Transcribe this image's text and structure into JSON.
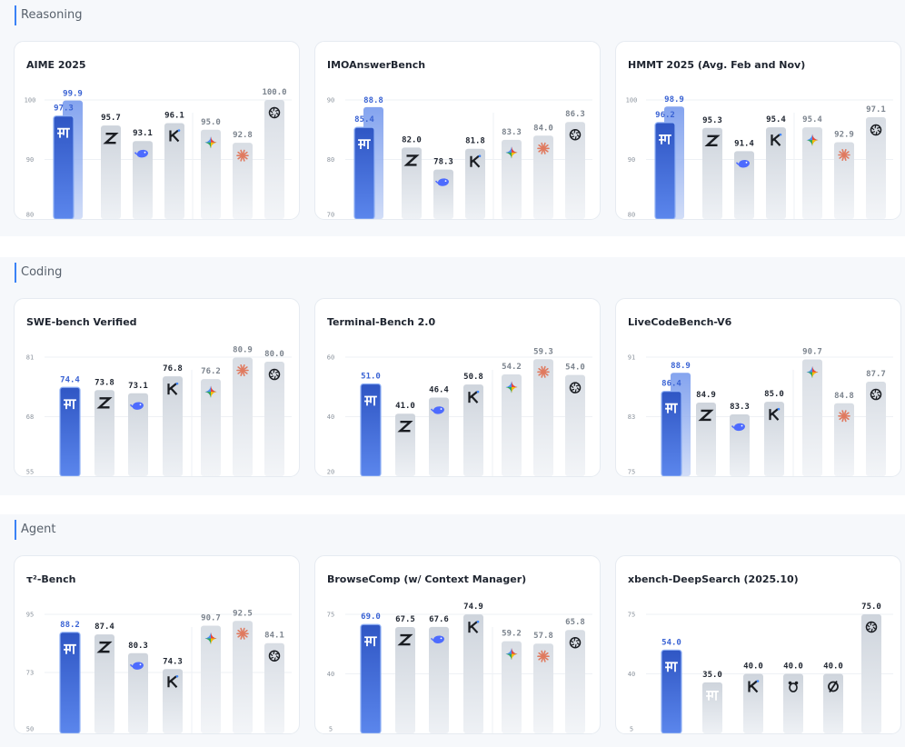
{
  "colors": {
    "primary_top": "#2f56c4",
    "primary_bottom": "#5b86ec",
    "primary_label": "#3a63d4",
    "gray_top": "#ced4dc",
    "gray_bottom": "#eef1f5",
    "gray_label": "#1f2530",
    "light_label": "#7c848e"
  },
  "sections": [
    {
      "title": "Reasoning",
      "charts": [
        {
          "title": "AIME 2025",
          "chart_data": {
            "type": "bar",
            "ylim": [
              80,
              100
            ],
            "ticks": [
              80,
              90,
              100
            ],
            "bars": [
              {
                "value": 97.3,
                "extra": 99.9,
                "icon": "m-icon",
                "style": "primary"
              },
              {
                "value": 95.7,
                "icon": "z-icon",
                "style": "gray"
              },
              {
                "value": 93.1,
                "icon": "whale-icon",
                "style": "gray"
              },
              {
                "value": 96.1,
                "icon": "k-icon",
                "style": "gray"
              },
              {
                "value": 95.0,
                "icon": "gemini-icon",
                "style": "light",
                "gap": true
              },
              {
                "value": 92.8,
                "icon": "claude-icon",
                "style": "light"
              },
              {
                "value": 100.0,
                "icon": "openai-icon",
                "style": "light"
              }
            ]
          }
        },
        {
          "title": "IMOAnswerBench",
          "chart_data": {
            "type": "bar",
            "ylim": [
              70,
              90
            ],
            "ticks": [
              70,
              80,
              90
            ],
            "bars": [
              {
                "value": 85.4,
                "extra": 88.8,
                "icon": "m-icon",
                "style": "primary"
              },
              {
                "value": 82.0,
                "icon": "z-icon",
                "style": "gray"
              },
              {
                "value": 78.3,
                "icon": "whale-icon",
                "style": "gray"
              },
              {
                "value": 81.8,
                "icon": "k-icon",
                "style": "gray"
              },
              {
                "value": 83.3,
                "icon": "gemini-icon",
                "style": "light",
                "gap": true
              },
              {
                "value": 84.0,
                "icon": "claude-icon",
                "style": "light"
              },
              {
                "value": 86.3,
                "icon": "openai-icon",
                "style": "light"
              }
            ]
          }
        },
        {
          "title": "HMMT 2025 (Avg. Feb and Nov)",
          "chart_data": {
            "type": "bar",
            "ylim": [
              80,
              100
            ],
            "ticks": [
              80,
              90,
              100
            ],
            "bars": [
              {
                "value": 96.2,
                "extra": 98.9,
                "icon": "m-icon",
                "style": "primary"
              },
              {
                "value": 95.3,
                "icon": "z-icon",
                "style": "gray"
              },
              {
                "value": 91.4,
                "icon": "whale-icon",
                "style": "gray"
              },
              {
                "value": 95.4,
                "icon": "k-icon",
                "style": "gray"
              },
              {
                "value": 95.4,
                "icon": "gemini-icon",
                "style": "light",
                "gap": true
              },
              {
                "value": 92.9,
                "icon": "claude-icon",
                "style": "light"
              },
              {
                "value": 97.1,
                "icon": "openai-icon",
                "style": "light"
              }
            ]
          }
        }
      ]
    },
    {
      "title": "Coding",
      "charts": [
        {
          "title": "SWE-bench Verified",
          "chart_data": {
            "type": "bar",
            "ylim": [
              55,
              81
            ],
            "ticks": [
              55,
              68,
              81
            ],
            "bars": [
              {
                "value": 74.4,
                "icon": "m-icon",
                "style": "primary"
              },
              {
                "value": 73.8,
                "icon": "z-icon",
                "style": "gray"
              },
              {
                "value": 73.1,
                "icon": "whale-icon",
                "style": "gray"
              },
              {
                "value": 76.8,
                "icon": "k-icon",
                "style": "gray"
              },
              {
                "value": 76.2,
                "icon": "gemini-icon",
                "style": "light",
                "gap": true
              },
              {
                "value": 80.9,
                "icon": "claude-icon",
                "style": "light"
              },
              {
                "value": 80.0,
                "icon": "openai-icon",
                "style": "light"
              }
            ]
          }
        },
        {
          "title": "Terminal-Bench 2.0",
          "chart_data": {
            "type": "bar",
            "ylim": [
              20,
              60
            ],
            "ticks": [
              20,
              40,
              60
            ],
            "bars": [
              {
                "value": 51.0,
                "icon": "m-icon",
                "style": "primary"
              },
              {
                "value": 41.0,
                "icon": "z-icon",
                "style": "gray"
              },
              {
                "value": 46.4,
                "icon": "whale-icon",
                "style": "gray"
              },
              {
                "value": 50.8,
                "icon": "k-icon",
                "style": "gray"
              },
              {
                "value": 54.2,
                "icon": "gemini-icon",
                "style": "light",
                "gap": true
              },
              {
                "value": 59.3,
                "icon": "claude-icon",
                "style": "light"
              },
              {
                "value": 54.0,
                "icon": "openai-icon",
                "style": "light"
              }
            ]
          }
        },
        {
          "title": "LiveCodeBench-V6",
          "chart_data": {
            "type": "bar",
            "ylim": [
              75,
              91
            ],
            "ticks": [
              75,
              83,
              91
            ],
            "bars": [
              {
                "value": 86.4,
                "extra": 88.9,
                "icon": "m-icon",
                "style": "primary"
              },
              {
                "value": 84.9,
                "icon": "z-icon",
                "style": "gray"
              },
              {
                "value": 83.3,
                "icon": "whale-icon",
                "style": "gray"
              },
              {
                "value": 85.0,
                "icon": "k-icon",
                "style": "gray"
              },
              {
                "value": 90.7,
                "icon": "gemini-icon",
                "style": "light",
                "gap": true
              },
              {
                "value": 84.8,
                "icon": "claude-icon",
                "style": "light"
              },
              {
                "value": 87.7,
                "icon": "openai-icon",
                "style": "light"
              }
            ]
          }
        }
      ]
    },
    {
      "title": "Agent",
      "charts": [
        {
          "title": "τ²-Bench",
          "chart_data": {
            "type": "bar",
            "ylim": [
              50,
              95
            ],
            "ticks": [
              50,
              73,
              95
            ],
            "bars": [
              {
                "value": 88.2,
                "icon": "m-icon",
                "style": "primary"
              },
              {
                "value": 87.4,
                "icon": "z-icon",
                "style": "gray"
              },
              {
                "value": 80.3,
                "icon": "whale-icon",
                "style": "gray"
              },
              {
                "value": 74.3,
                "icon": "k-icon",
                "style": "gray"
              },
              {
                "value": 90.7,
                "icon": "gemini-icon",
                "style": "light",
                "gap": true
              },
              {
                "value": 92.5,
                "icon": "claude-icon",
                "style": "light"
              },
              {
                "value": 84.1,
                "icon": "openai-icon",
                "style": "light"
              }
            ]
          }
        },
        {
          "title": "BrowseComp (w/ Context Manager)",
          "chart_data": {
            "type": "bar",
            "ylim": [
              5,
              75
            ],
            "ticks": [
              5,
              40,
              75
            ],
            "bars": [
              {
                "value": 69.0,
                "icon": "m-icon",
                "style": "primary"
              },
              {
                "value": 67.5,
                "icon": "z-icon",
                "style": "gray"
              },
              {
                "value": 67.6,
                "icon": "whale-icon",
                "style": "gray"
              },
              {
                "value": 74.9,
                "icon": "k-icon",
                "style": "gray"
              },
              {
                "value": 59.2,
                "icon": "gemini-icon",
                "style": "light",
                "gap": true
              },
              {
                "value": 57.8,
                "icon": "claude-icon",
                "style": "light"
              },
              {
                "value": 65.8,
                "icon": "openai-icon",
                "style": "light"
              }
            ]
          }
        },
        {
          "title": "xbench-DeepSearch (2025.10)",
          "chart_data": {
            "type": "bar",
            "ylim": [
              5,
              75
            ],
            "ticks": [
              5,
              40,
              75
            ],
            "bars": [
              {
                "value": 54.0,
                "icon": "m-icon",
                "style": "primary"
              },
              {
                "value": 35.0,
                "icon": "m-outline-icon",
                "style": "gray"
              },
              {
                "value": 40.0,
                "icon": "k-icon",
                "style": "gray"
              },
              {
                "value": 40.0,
                "icon": "dog-icon",
                "style": "gray"
              },
              {
                "value": 40.0,
                "icon": "slash-circle-icon",
                "style": "gray"
              },
              {
                "value": 75.0,
                "icon": "openai-icon",
                "style": "gray"
              }
            ]
          }
        }
      ]
    }
  ]
}
